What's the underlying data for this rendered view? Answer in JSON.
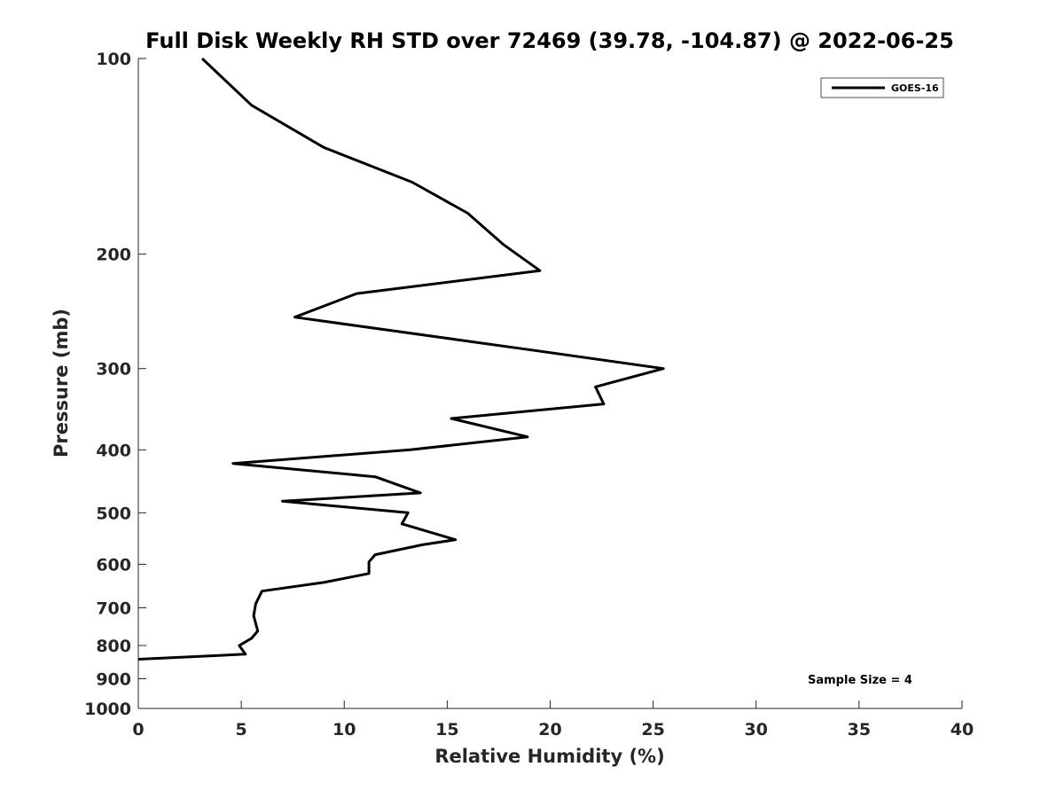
{
  "chart_data": {
    "type": "line",
    "title": "Full Disk Weekly RH STD over 72469 (39.78, -104.87) @ 2022-06-25",
    "xlabel": "Relative Humidity (%)",
    "ylabel": "Pressure (mb)",
    "xlim": [
      0,
      40
    ],
    "ylim": [
      100,
      1000
    ],
    "y_scale": "log",
    "y_reversed": true,
    "x_ticks": [
      0,
      5,
      10,
      15,
      20,
      25,
      30,
      35,
      40
    ],
    "x_tick_labels": [
      "0",
      "5",
      "10",
      "15",
      "20",
      "25",
      "30",
      "35",
      "40"
    ],
    "y_ticks": [
      100,
      200,
      300,
      400,
      500,
      600,
      700,
      800,
      900,
      1000
    ],
    "y_tick_labels": [
      "100",
      "200",
      "300",
      "400",
      "500",
      "600",
      "700",
      "800",
      "900",
      "1000"
    ],
    "grid": false,
    "legend_position": "top-right",
    "series": [
      {
        "name": "GOES-16",
        "color": "#000000",
        "points": [
          [
            3.1,
            100
          ],
          [
            5.5,
            118
          ],
          [
            9.0,
            137
          ],
          [
            13.3,
            155
          ],
          [
            16.0,
            173
          ],
          [
            17.7,
            193
          ],
          [
            19.5,
            212
          ],
          [
            10.6,
            230
          ],
          [
            7.6,
            250
          ],
          [
            18.8,
            280
          ],
          [
            25.5,
            300
          ],
          [
            22.2,
            320
          ],
          [
            22.6,
            340
          ],
          [
            15.2,
            358
          ],
          [
            18.9,
            382
          ],
          [
            13.2,
            400
          ],
          [
            4.6,
            420
          ],
          [
            11.5,
            440
          ],
          [
            13.7,
            466
          ],
          [
            7.0,
            480
          ],
          [
            13.1,
            500
          ],
          [
            12.8,
            520
          ],
          [
            15.4,
            550
          ],
          [
            13.8,
            560
          ],
          [
            11.5,
            580
          ],
          [
            11.2,
            595
          ],
          [
            11.2,
            620
          ],
          [
            9.0,
            640
          ],
          [
            6.0,
            660
          ],
          [
            5.7,
            690
          ],
          [
            5.6,
            720
          ],
          [
            5.8,
            760
          ],
          [
            5.5,
            780
          ],
          [
            4.9,
            800
          ],
          [
            5.2,
            825
          ],
          [
            0.0,
            840
          ]
        ]
      }
    ],
    "annotation": "Sample Size = 4"
  }
}
